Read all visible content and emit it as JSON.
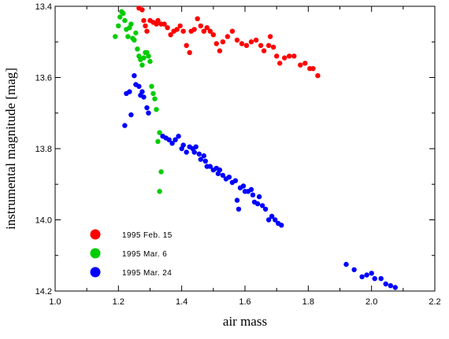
{
  "chart_data": {
    "type": "scatter",
    "xlabel": "air mass",
    "ylabel": "instrumental magnitude [mag]",
    "xlim": [
      1.0,
      2.2
    ],
    "ylim": [
      13.4,
      14.2
    ],
    "y_inverted": true,
    "x_major_ticks": [
      "1.0",
      "1.2",
      "1.4",
      "1.6",
      "1.8",
      "2.0",
      "2.2"
    ],
    "y_major_ticks": [
      "13.4",
      "13.6",
      "13.8",
      "14.0",
      "14.2"
    ],
    "grid": false,
    "legend_position": "bottom-left",
    "series": [
      {
        "name": "1995 Feb. 15",
        "color": "#ff0000",
        "points": [
          [
            1.265,
            13.405
          ],
          [
            1.275,
            13.41
          ],
          [
            1.28,
            13.44
          ],
          [
            1.285,
            13.455
          ],
          [
            1.29,
            13.47
          ],
          [
            1.3,
            13.44
          ],
          [
            1.31,
            13.445
          ],
          [
            1.32,
            13.45
          ],
          [
            1.325,
            13.44
          ],
          [
            1.335,
            13.45
          ],
          [
            1.345,
            13.45
          ],
          [
            1.355,
            13.46
          ],
          [
            1.365,
            13.48
          ],
          [
            1.375,
            13.47
          ],
          [
            1.385,
            13.465
          ],
          [
            1.395,
            13.455
          ],
          [
            1.405,
            13.47
          ],
          [
            1.415,
            13.51
          ],
          [
            1.425,
            13.53
          ],
          [
            1.43,
            13.47
          ],
          [
            1.44,
            13.465
          ],
          [
            1.45,
            13.435
          ],
          [
            1.46,
            13.455
          ],
          [
            1.47,
            13.47
          ],
          [
            1.48,
            13.46
          ],
          [
            1.49,
            13.47
          ],
          [
            1.5,
            13.48
          ],
          [
            1.51,
            13.505
          ],
          [
            1.52,
            13.525
          ],
          [
            1.53,
            13.5
          ],
          [
            1.545,
            13.485
          ],
          [
            1.56,
            13.47
          ],
          [
            1.575,
            13.495
          ],
          [
            1.59,
            13.505
          ],
          [
            1.605,
            13.51
          ],
          [
            1.62,
            13.5
          ],
          [
            1.635,
            13.495
          ],
          [
            1.65,
            13.51
          ],
          [
            1.66,
            13.525
          ],
          [
            1.675,
            13.51
          ],
          [
            1.68,
            13.485
          ],
          [
            1.69,
            13.515
          ],
          [
            1.7,
            13.54
          ],
          [
            1.71,
            13.56
          ],
          [
            1.725,
            13.545
          ],
          [
            1.74,
            13.54
          ],
          [
            1.755,
            13.54
          ],
          [
            1.775,
            13.565
          ],
          [
            1.79,
            13.56
          ],
          [
            1.805,
            13.575
          ],
          [
            1.815,
            13.575
          ],
          [
            1.83,
            13.595
          ]
        ]
      },
      {
        "name": "1995 Mar. 6",
        "color": "#00cc00",
        "points": [
          [
            1.19,
            13.485
          ],
          [
            1.2,
            13.455
          ],
          [
            1.205,
            13.43
          ],
          [
            1.21,
            13.415
          ],
          [
            1.215,
            13.42
          ],
          [
            1.22,
            13.44
          ],
          [
            1.225,
            13.465
          ],
          [
            1.23,
            13.485
          ],
          [
            1.235,
            13.46
          ],
          [
            1.24,
            13.45
          ],
          [
            1.245,
            13.49
          ],
          [
            1.25,
            13.495
          ],
          [
            1.255,
            13.475
          ],
          [
            1.26,
            13.52
          ],
          [
            1.265,
            13.54
          ],
          [
            1.27,
            13.55
          ],
          [
            1.275,
            13.565
          ],
          [
            1.28,
            13.545
          ],
          [
            1.285,
            13.53
          ],
          [
            1.29,
            13.53
          ],
          [
            1.295,
            13.54
          ],
          [
            1.3,
            13.555
          ],
          [
            1.305,
            13.625
          ],
          [
            1.31,
            13.645
          ],
          [
            1.315,
            13.66
          ],
          [
            1.32,
            13.69
          ],
          [
            1.325,
            13.78
          ],
          [
            1.33,
            13.755
          ],
          [
            1.33,
            13.92
          ],
          [
            1.335,
            13.865
          ]
        ]
      },
      {
        "name": "1995 Mar. 24",
        "color": "#0000ff",
        "points": [
          [
            1.22,
            13.735
          ],
          [
            1.225,
            13.645
          ],
          [
            1.235,
            13.64
          ],
          [
            1.24,
            13.705
          ],
          [
            1.25,
            13.595
          ],
          [
            1.255,
            13.62
          ],
          [
            1.265,
            13.625
          ],
          [
            1.27,
            13.65
          ],
          [
            1.275,
            13.64
          ],
          [
            1.28,
            13.655
          ],
          [
            1.29,
            13.685
          ],
          [
            1.295,
            13.7
          ],
          [
            1.34,
            13.765
          ],
          [
            1.35,
            13.77
          ],
          [
            1.36,
            13.775
          ],
          [
            1.37,
            13.785
          ],
          [
            1.38,
            13.775
          ],
          [
            1.39,
            13.765
          ],
          [
            1.4,
            13.8
          ],
          [
            1.405,
            13.79
          ],
          [
            1.415,
            13.81
          ],
          [
            1.425,
            13.795
          ],
          [
            1.435,
            13.8
          ],
          [
            1.44,
            13.81
          ],
          [
            1.445,
            13.795
          ],
          [
            1.455,
            13.815
          ],
          [
            1.46,
            13.83
          ],
          [
            1.47,
            13.82
          ],
          [
            1.475,
            13.835
          ],
          [
            1.48,
            13.85
          ],
          [
            1.49,
            13.85
          ],
          [
            1.5,
            13.86
          ],
          [
            1.51,
            13.855
          ],
          [
            1.515,
            13.87
          ],
          [
            1.52,
            13.86
          ],
          [
            1.53,
            13.875
          ],
          [
            1.54,
            13.885
          ],
          [
            1.55,
            13.88
          ],
          [
            1.56,
            13.895
          ],
          [
            1.57,
            13.89
          ],
          [
            1.575,
            13.945
          ],
          [
            1.58,
            13.97
          ],
          [
            1.585,
            13.91
          ],
          [
            1.595,
            13.905
          ],
          [
            1.6,
            13.92
          ],
          [
            1.61,
            13.92
          ],
          [
            1.62,
            13.915
          ],
          [
            1.625,
            13.93
          ],
          [
            1.63,
            13.95
          ],
          [
            1.64,
            13.955
          ],
          [
            1.645,
            13.935
          ],
          [
            1.655,
            13.96
          ],
          [
            1.665,
            13.97
          ],
          [
            1.675,
            14.0
          ],
          [
            1.685,
            13.99
          ],
          [
            1.695,
            14.0
          ],
          [
            1.705,
            14.01
          ],
          [
            1.715,
            14.015
          ],
          [
            1.92,
            14.125
          ],
          [
            1.945,
            14.14
          ],
          [
            1.97,
            14.16
          ],
          [
            1.985,
            14.155
          ],
          [
            2.0,
            14.15
          ],
          [
            2.01,
            14.165
          ],
          [
            2.03,
            14.165
          ],
          [
            2.045,
            14.18
          ],
          [
            2.06,
            14.185
          ],
          [
            2.075,
            14.19
          ]
        ]
      }
    ]
  }
}
